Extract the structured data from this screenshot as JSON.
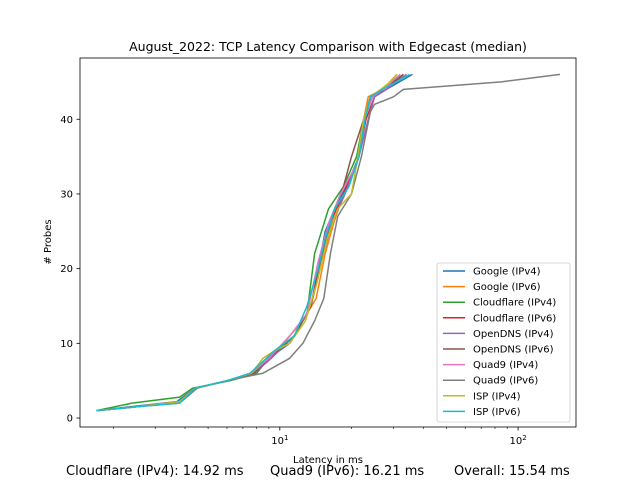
{
  "chart_data": {
    "type": "line",
    "title": "August_2022: TCP Latency Comparison with Edgecast (median)",
    "xlabel": "Latency in ms",
    "ylabel": "# Probes",
    "xscale": "log",
    "xlim": [
      1.45,
      175
    ],
    "ylim": [
      -1.2,
      48.2
    ],
    "xticks": [
      {
        "value": 10,
        "label": "10",
        "base": "10",
        "exp": "1"
      },
      {
        "value": 100,
        "label": "100",
        "base": "10",
        "exp": "2"
      }
    ],
    "yticks": [
      0,
      10,
      20,
      30,
      40
    ],
    "grid": false,
    "legend_position": "lower-right",
    "series": [
      {
        "name": "Google (IPv4)",
        "color": "#1f77b4",
        "points": [
          [
            1.7,
            1
          ],
          [
            2.5,
            1.6
          ],
          [
            3.7,
            2.2
          ],
          [
            4.4,
            4
          ],
          [
            6,
            5
          ],
          [
            7.6,
            6
          ],
          [
            9,
            8
          ],
          [
            11,
            10
          ],
          [
            12,
            12
          ],
          [
            13.5,
            15
          ],
          [
            14.5,
            20
          ],
          [
            15.5,
            25
          ],
          [
            17,
            28
          ],
          [
            19,
            31
          ],
          [
            21.5,
            35
          ],
          [
            22.6,
            40
          ],
          [
            24.5,
            43
          ],
          [
            28,
            44
          ],
          [
            36,
            46
          ]
        ]
      },
      {
        "name": "Google (IPv6)",
        "color": "#ff7f0e",
        "points": [
          [
            1.7,
            1
          ],
          [
            2.5,
            1.5
          ],
          [
            3.8,
            2.2
          ],
          [
            4.4,
            4
          ],
          [
            6.1,
            5
          ],
          [
            7.8,
            6
          ],
          [
            9.2,
            8
          ],
          [
            11,
            11
          ],
          [
            12.5,
            13
          ],
          [
            14.2,
            16
          ],
          [
            15.5,
            22
          ],
          [
            16.8,
            26
          ],
          [
            18.5,
            30
          ],
          [
            21,
            34
          ],
          [
            22.5,
            40
          ],
          [
            23.5,
            43
          ],
          [
            27,
            44
          ],
          [
            31,
            46
          ]
        ]
      },
      {
        "name": "Cloudflare (IPv4)",
        "color": "#2ca02c",
        "points": [
          [
            1.7,
            1
          ],
          [
            2.4,
            2
          ],
          [
            3.8,
            2.8
          ],
          [
            4.3,
            4
          ],
          [
            6.2,
            5
          ],
          [
            8,
            6
          ],
          [
            9.5,
            9
          ],
          [
            11.5,
            11
          ],
          [
            13,
            14
          ],
          [
            14,
            22
          ],
          [
            16,
            28
          ],
          [
            18.5,
            31
          ],
          [
            21,
            35
          ],
          [
            22.5,
            40
          ],
          [
            24,
            43
          ],
          [
            27,
            44
          ],
          [
            32,
            46
          ]
        ]
      },
      {
        "name": "Cloudflare (IPv6)",
        "color": "#d62728",
        "points": [
          [
            1.7,
            1
          ],
          [
            2.5,
            1.5
          ],
          [
            3.8,
            2.2
          ],
          [
            4.4,
            4
          ],
          [
            6,
            5
          ],
          [
            7.8,
            6
          ],
          [
            9,
            8
          ],
          [
            11.5,
            11
          ],
          [
            13.5,
            15
          ],
          [
            14.8,
            21
          ],
          [
            16.2,
            26
          ],
          [
            18.5,
            30
          ],
          [
            21,
            34
          ],
          [
            23,
            40
          ],
          [
            25,
            43
          ],
          [
            28,
            44
          ],
          [
            33,
            46
          ]
        ]
      },
      {
        "name": "OpenDNS (IPv4)",
        "color": "#9467bd",
        "points": [
          [
            1.7,
            1
          ],
          [
            2.5,
            1.5
          ],
          [
            3.8,
            2.2
          ],
          [
            4.4,
            4
          ],
          [
            6.1,
            5
          ],
          [
            7.8,
            6
          ],
          [
            9.2,
            8
          ],
          [
            11.5,
            11
          ],
          [
            13.5,
            15
          ],
          [
            15,
            21
          ],
          [
            16.5,
            26
          ],
          [
            18.8,
            30
          ],
          [
            21.5,
            35
          ],
          [
            23.5,
            40
          ],
          [
            25,
            43
          ],
          [
            28,
            44
          ],
          [
            34,
            46
          ]
        ]
      },
      {
        "name": "OpenDNS (IPv6)",
        "color": "#8c564b",
        "points": [
          [
            1.7,
            1
          ],
          [
            2.5,
            1.5
          ],
          [
            3.8,
            2.2
          ],
          [
            4.4,
            4
          ],
          [
            6,
            5
          ],
          [
            7.8,
            6
          ],
          [
            9,
            8
          ],
          [
            11.5,
            11
          ],
          [
            13.5,
            15
          ],
          [
            15,
            21
          ],
          [
            16.5,
            27
          ],
          [
            18.5,
            31
          ],
          [
            20,
            35
          ],
          [
            22.5,
            40
          ],
          [
            24,
            43
          ],
          [
            27,
            44
          ],
          [
            33,
            46
          ]
        ]
      },
      {
        "name": "Quad9 (IPv4)",
        "color": "#e377c2",
        "points": [
          [
            1.7,
            1
          ],
          [
            2.5,
            1.5
          ],
          [
            3.8,
            2.2
          ],
          [
            4.4,
            4
          ],
          [
            6,
            5
          ],
          [
            7.6,
            6
          ],
          [
            9,
            8
          ],
          [
            11,
            11
          ],
          [
            13,
            14
          ],
          [
            14.5,
            21
          ],
          [
            16,
            26
          ],
          [
            18,
            30
          ],
          [
            21,
            34
          ],
          [
            22.5,
            40
          ],
          [
            24.5,
            43
          ],
          [
            27,
            44
          ],
          [
            32,
            46
          ]
        ]
      },
      {
        "name": "Quad9 (IPv6)",
        "color": "#7f7f7f",
        "points": [
          [
            1.7,
            1
          ],
          [
            2.5,
            1.5
          ],
          [
            3.8,
            2
          ],
          [
            4.5,
            4
          ],
          [
            6,
            5
          ],
          [
            8.5,
            6
          ],
          [
            11,
            8
          ],
          [
            12.5,
            10
          ],
          [
            14,
            13
          ],
          [
            15.3,
            16
          ],
          [
            16.3,
            22
          ],
          [
            17.5,
            27
          ],
          [
            20,
            30
          ],
          [
            22,
            35
          ],
          [
            24,
            41
          ],
          [
            25,
            42
          ],
          [
            30,
            43
          ],
          [
            33,
            44
          ],
          [
            85,
            45
          ],
          [
            150,
            46
          ]
        ]
      },
      {
        "name": "ISP (IPv4)",
        "color": "#bcbd22",
        "points": [
          [
            1.7,
            1
          ],
          [
            2.5,
            1.5
          ],
          [
            3.8,
            2.2
          ],
          [
            4.4,
            4
          ],
          [
            6,
            5
          ],
          [
            7.6,
            6
          ],
          [
            8.5,
            8
          ],
          [
            9.5,
            9
          ],
          [
            11,
            10
          ],
          [
            12.8,
            13
          ],
          [
            14.3,
            18
          ],
          [
            15.8,
            24
          ],
          [
            17.5,
            28
          ],
          [
            20,
            30
          ],
          [
            21,
            34
          ],
          [
            22.5,
            40
          ],
          [
            24,
            43
          ],
          [
            26.5,
            44
          ],
          [
            29,
            45
          ],
          [
            31,
            46
          ]
        ]
      },
      {
        "name": "ISP (IPv6)",
        "color": "#17becf",
        "points": [
          [
            1.7,
            1
          ],
          [
            2.5,
            1.5
          ],
          [
            3.8,
            2
          ],
          [
            4.4,
            4
          ],
          [
            6,
            5
          ],
          [
            7.5,
            6
          ],
          [
            9.5,
            9
          ],
          [
            11.5,
            11
          ],
          [
            13,
            15
          ],
          [
            14.5,
            20
          ],
          [
            15.5,
            24
          ],
          [
            17,
            28
          ],
          [
            19.5,
            31
          ],
          [
            21.5,
            35
          ],
          [
            22.8,
            40
          ],
          [
            24,
            43
          ],
          [
            27,
            44
          ],
          [
            35,
            46
          ]
        ]
      }
    ]
  },
  "footer": {
    "stat1": "Cloudflare (IPv4): 14.92 ms",
    "stat2": "Quad9 (IPv6): 16.21 ms",
    "stat3": "Overall: 15.54 ms"
  }
}
